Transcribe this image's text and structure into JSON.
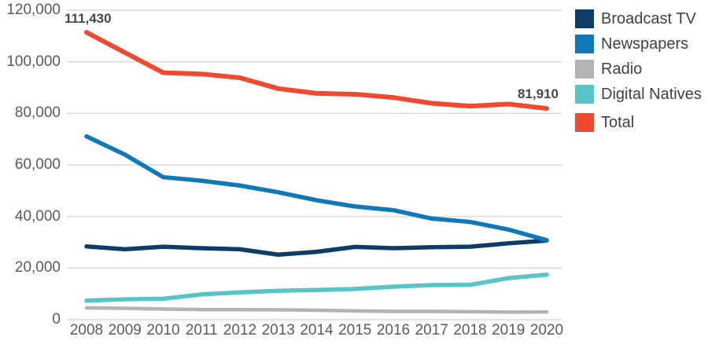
{
  "chart_data": {
    "type": "line",
    "title": "",
    "xlabel": "",
    "ylabel": "",
    "x": [
      2008,
      2009,
      2010,
      2011,
      2012,
      2013,
      2014,
      2015,
      2016,
      2017,
      2018,
      2019,
      2020
    ],
    "xticklabels": [
      "2008",
      "2009",
      "2010",
      "2011",
      "2012",
      "2013",
      "2014",
      "2015",
      "2016",
      "2017",
      "2018",
      "2019",
      "2020"
    ],
    "yticks": [
      0,
      20000,
      40000,
      60000,
      80000,
      100000,
      120000
    ],
    "yticklabels": [
      "0",
      "20,000",
      "40,000",
      "60,000",
      "80,000",
      "100,000",
      "120,000"
    ],
    "ylim": [
      0,
      120000
    ],
    "grid": "horizontal",
    "gridline_color": "#d8d9da",
    "tick_text_color": "#595a5c",
    "legend_position": "right",
    "series": [
      {
        "name": "Broadcast TV",
        "color": "#0d3d66",
        "values": [
          28390,
          27300,
          28300,
          27700,
          27300,
          25200,
          26300,
          28200,
          27700,
          28100,
          28300,
          29600,
          30700
        ]
      },
      {
        "name": "Newspapers",
        "color": "#0f78b9",
        "values": [
          71070,
          64000,
          55260,
          53870,
          52000,
          49400,
          46300,
          43900,
          42450,
          39210,
          37900,
          34950,
          30820
        ]
      },
      {
        "name": "Radio",
        "color": "#b2b3b5",
        "values": [
          4570,
          4400,
          4100,
          3900,
          3900,
          3800,
          3650,
          3400,
          3200,
          3200,
          3100,
          2950,
          2960
        ]
      },
      {
        "name": "Digital Natives",
        "color": "#57c5c7",
        "values": [
          7400,
          7900,
          8100,
          9800,
          10600,
          11200,
          11500,
          11900,
          12800,
          13400,
          13500,
          16100,
          17430
        ]
      },
      {
        "name": "Total",
        "color": "#ef4a30",
        "values": [
          111430,
          103600,
          95760,
          95270,
          93800,
          89600,
          87750,
          87400,
          86150,
          83910,
          82800,
          83600,
          81910
        ]
      }
    ],
    "annotations": [
      {
        "text": "111,430",
        "series": "Total",
        "x": 2008,
        "value": 111430
      },
      {
        "text": "81,910",
        "series": "Total",
        "x": 2020,
        "value": 81910
      }
    ]
  }
}
